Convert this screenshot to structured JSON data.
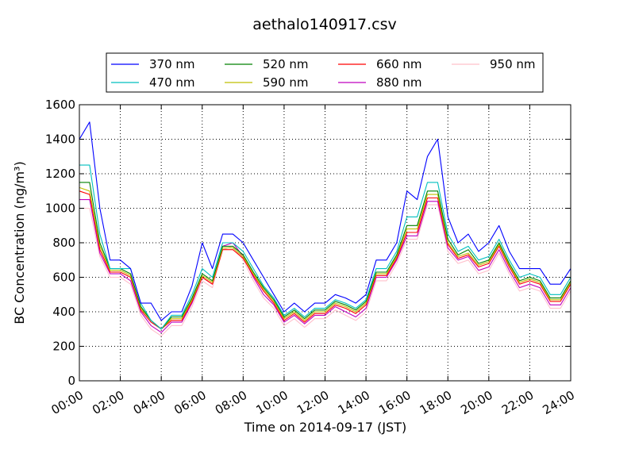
{
  "chart_data": {
    "type": "line",
    "title": "aethalo140917.csv",
    "xlabel": "Time on 2014-09-17 (JST)",
    "ylabel": "BC Concentration (ng/m³)",
    "ylim": [
      0,
      1600
    ],
    "xlim_hours": [
      0,
      24
    ],
    "yticks": [
      "0",
      "200",
      "400",
      "600",
      "800",
      "1000",
      "1200",
      "1400",
      "1600"
    ],
    "xticks": [
      "00:00",
      "02:00",
      "04:00",
      "06:00",
      "08:00",
      "10:00",
      "12:00",
      "14:00",
      "16:00",
      "18:00",
      "20:00",
      "22:00",
      "24:00"
    ],
    "grid": true,
    "legend_placement": "top-center, above plot, 4 columns",
    "x_hours": [
      0,
      0.5,
      1,
      1.5,
      2,
      2.5,
      3,
      3.5,
      4,
      4.5,
      5,
      5.5,
      6,
      6.5,
      7,
      7.5,
      8,
      8.5,
      9,
      9.5,
      10,
      10.5,
      11,
      11.5,
      12,
      12.5,
      13,
      13.5,
      14,
      14.5,
      15,
      15.5,
      16,
      16.5,
      17,
      17.5,
      18,
      18.5,
      19,
      19.5,
      20,
      20.5,
      21,
      21.5,
      22,
      22.5,
      23,
      23.5,
      24
    ],
    "series": [
      {
        "name": "370 nm",
        "color": "#0000ff",
        "values": [
          1400,
          1500,
          1000,
          700,
          700,
          650,
          450,
          450,
          350,
          400,
          400,
          550,
          800,
          650,
          850,
          850,
          800,
          700,
          600,
          500,
          400,
          450,
          400,
          450,
          450,
          500,
          480,
          450,
          500,
          700,
          700,
          800,
          1100,
          1050,
          1300,
          1400,
          950,
          800,
          850,
          750,
          800,
          900,
          750,
          650,
          650,
          650,
          560,
          560,
          650
        ]
      },
      {
        "name": "470 nm",
        "color": "#00bfbf",
        "values": [
          1250,
          1250,
          850,
          650,
          650,
          650,
          450,
          350,
          300,
          380,
          380,
          500,
          650,
          600,
          800,
          800,
          750,
          650,
          550,
          480,
          380,
          420,
          370,
          420,
          420,
          470,
          450,
          420,
          470,
          650,
          650,
          750,
          950,
          950,
          1150,
          1150,
          850,
          750,
          780,
          700,
          720,
          820,
          700,
          600,
          620,
          600,
          500,
          500,
          600
        ]
      },
      {
        "name": "520 nm",
        "color": "#008000",
        "values": [
          1150,
          1150,
          800,
          650,
          650,
          620,
          430,
          350,
          300,
          370,
          370,
          480,
          620,
          580,
          780,
          780,
          730,
          630,
          540,
          470,
          370,
          410,
          360,
          410,
          410,
          460,
          440,
          410,
          460,
          630,
          630,
          730,
          900,
          900,
          1100,
          1100,
          820,
          730,
          760,
          680,
          700,
          800,
          680,
          580,
          600,
          580,
          480,
          480,
          580
        ]
      },
      {
        "name": "590 nm",
        "color": "#bfbf00",
        "values": [
          1120,
          1100,
          780,
          640,
          640,
          610,
          420,
          350,
          300,
          360,
          360,
          470,
          610,
          570,
          770,
          770,
          720,
          620,
          530,
          460,
          360,
          400,
          350,
          400,
          400,
          450,
          430,
          400,
          450,
          620,
          620,
          720,
          880,
          880,
          1080,
          1080,
          800,
          720,
          740,
          670,
          690,
          790,
          670,
          570,
          590,
          570,
          470,
          470,
          570
        ]
      },
      {
        "name": "660 nm",
        "color": "#ff0000",
        "values": [
          1100,
          1080,
          760,
          630,
          630,
          600,
          410,
          340,
          300,
          350,
          350,
          460,
          600,
          560,
          760,
          760,
          710,
          610,
          520,
          450,
          350,
          390,
          340,
          390,
          390,
          440,
          420,
          390,
          440,
          610,
          610,
          710,
          860,
          860,
          1060,
          1060,
          790,
          710,
          730,
          660,
          680,
          780,
          660,
          560,
          580,
          560,
          460,
          460,
          560
        ]
      },
      {
        "name": "880 nm",
        "color": "#bf00bf",
        "values": [
          1050,
          1050,
          740,
          620,
          620,
          580,
          400,
          320,
          280,
          340,
          340,
          450,
          600,
          560,
          780,
          800,
          720,
          600,
          500,
          440,
          340,
          380,
          330,
          380,
          380,
          430,
          400,
          370,
          420,
          600,
          600,
          700,
          840,
          840,
          1040,
          1040,
          770,
          700,
          720,
          640,
          660,
          760,
          640,
          540,
          560,
          540,
          440,
          440,
          540
        ]
      },
      {
        "name": "950 nm",
        "color": "#ffc0cb",
        "values": [
          1000,
          1000,
          720,
          600,
          600,
          560,
          380,
          300,
          260,
          320,
          320,
          430,
          580,
          540,
          760,
          780,
          700,
          580,
          480,
          420,
          320,
          360,
          310,
          360,
          360,
          410,
          380,
          350,
          400,
          580,
          580,
          680,
          820,
          820,
          1020,
          1020,
          750,
          680,
          700,
          620,
          640,
          740,
          620,
          520,
          540,
          520,
          420,
          420,
          520
        ]
      }
    ]
  }
}
